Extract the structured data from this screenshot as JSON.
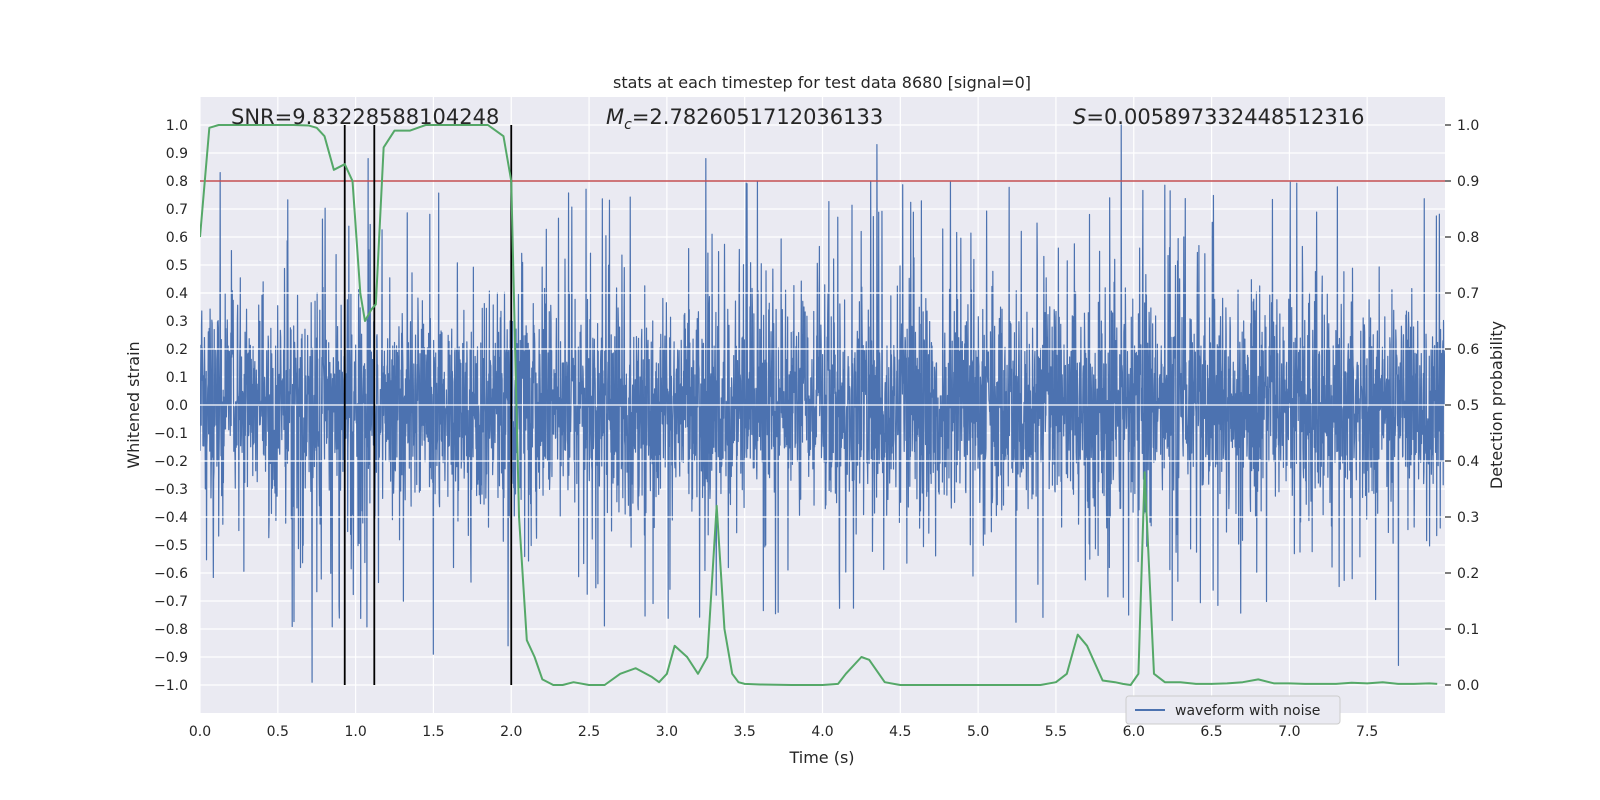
{
  "chart_data": {
    "type": "line",
    "title": "stats at each timestep for test data 8680 [signal=0]",
    "xlabel": "Time (s)",
    "ylabel": "Whitened strain",
    "y2label": "Detection probability",
    "xlim": [
      0.0,
      8.0
    ],
    "ylim": [
      -1.1,
      1.1
    ],
    "y2lim": [
      -0.05,
      1.05
    ],
    "x_ticks": [
      "0.0",
      "0.5",
      "1.0",
      "1.5",
      "2.0",
      "2.5",
      "3.0",
      "3.5",
      "4.0",
      "4.5",
      "5.0",
      "5.5",
      "6.0",
      "6.5",
      "7.0",
      "7.5"
    ],
    "y_ticks": [
      "1.0",
      "0.9",
      "0.8",
      "0.7",
      "0.6",
      "0.5",
      "0.4",
      "0.3",
      "0.2",
      "0.1",
      "0.0",
      "−0.1",
      "−0.2",
      "−0.3",
      "−0.4",
      "−0.5",
      "−0.6",
      "−0.7",
      "−0.8",
      "−0.9",
      "−1.0"
    ],
    "y2_ticks": [
      "1.0",
      "0.9",
      "0.8",
      "0.7",
      "0.6",
      "0.5",
      "0.4",
      "0.3",
      "0.2",
      "0.1",
      "0.0"
    ],
    "annotations": {
      "snr": "SNR=9.83228588104248",
      "mc_symbol": "M",
      "mc_sub": "c",
      "mc_value": "=2.7826051712036133",
      "s_symbol": "S",
      "s_value": "=0.005897332448512316"
    },
    "threshold": 0.9,
    "vlines": [
      0.93,
      1.12,
      2.0
    ],
    "legend": [
      {
        "label": "waveform with noise",
        "color": "#4c72b0"
      }
    ],
    "legend_position": "lower-right",
    "waveform": {
      "name": "waveform with noise",
      "color": "#4c72b0",
      "description": "noise-dominated whitened strain, core amplitude about ±0.4, peaks near ±1.0",
      "peaks": [
        {
          "x": 0.13,
          "y": 0.83
        },
        {
          "x": 0.72,
          "y": -0.99
        },
        {
          "x": 0.93,
          "y": 0.86
        },
        {
          "x": 1.08,
          "y": 0.88
        },
        {
          "x": 1.5,
          "y": -0.89
        },
        {
          "x": 1.98,
          "y": -0.86
        },
        {
          "x": 3.25,
          "y": 0.88
        },
        {
          "x": 4.35,
          "y": 0.93
        },
        {
          "x": 5.92,
          "y": 1.0
        },
        {
          "x": 7.7,
          "y": -0.93
        }
      ]
    },
    "detection_probability": {
      "name": "detection probability",
      "color": "#55a868",
      "x": [
        0.0,
        0.06,
        0.12,
        0.2,
        0.4,
        0.6,
        0.7,
        0.75,
        0.8,
        0.86,
        0.93,
        0.98,
        1.03,
        1.06,
        1.1,
        1.13,
        1.18,
        1.25,
        1.35,
        1.45,
        1.55,
        1.7,
        1.85,
        1.95,
        2.0,
        2.05,
        2.1,
        2.15,
        2.2,
        2.27,
        2.33,
        2.4,
        2.5,
        2.6,
        2.7,
        2.8,
        2.9,
        2.95,
        3.0,
        3.05,
        3.13,
        3.2,
        3.26,
        3.32,
        3.37,
        3.42,
        3.46,
        3.5,
        3.6,
        3.8,
        4.0,
        4.1,
        4.15,
        4.25,
        4.3,
        4.4,
        4.5,
        4.6,
        4.8,
        5.0,
        5.2,
        5.4,
        5.5,
        5.57,
        5.64,
        5.7,
        5.8,
        5.88,
        5.93,
        5.98,
        6.03,
        6.07,
        6.13,
        6.2,
        6.3,
        6.4,
        6.5,
        6.6,
        6.7,
        6.8,
        6.9,
        7.0,
        7.1,
        7.2,
        7.3,
        7.4,
        7.5,
        7.6,
        7.7,
        7.8,
        7.9,
        7.95
      ],
      "y": [
        0.8,
        0.995,
        1.0,
        1.0,
        1.0,
        1.0,
        0.999,
        0.995,
        0.98,
        0.92,
        0.93,
        0.9,
        0.7,
        0.65,
        0.67,
        0.68,
        0.96,
        0.99,
        0.99,
        1.0,
        1.0,
        1.0,
        1.0,
        0.98,
        0.9,
        0.3,
        0.08,
        0.05,
        0.01,
        0.0,
        0.0,
        0.005,
        0.0,
        0.0,
        0.02,
        0.03,
        0.015,
        0.005,
        0.02,
        0.07,
        0.05,
        0.02,
        0.05,
        0.32,
        0.1,
        0.02,
        0.005,
        0.002,
        0.001,
        0.0,
        0.0,
        0.002,
        0.02,
        0.05,
        0.045,
        0.005,
        0.0,
        0.0,
        0.0,
        0.0,
        0.0,
        0.0,
        0.005,
        0.02,
        0.09,
        0.07,
        0.008,
        0.005,
        0.002,
        0.0,
        0.02,
        0.38,
        0.02,
        0.005,
        0.005,
        0.002,
        0.002,
        0.003,
        0.005,
        0.01,
        0.003,
        0.003,
        0.002,
        0.002,
        0.002,
        0.004,
        0.003,
        0.005,
        0.002,
        0.002,
        0.003,
        0.002
      ]
    }
  }
}
